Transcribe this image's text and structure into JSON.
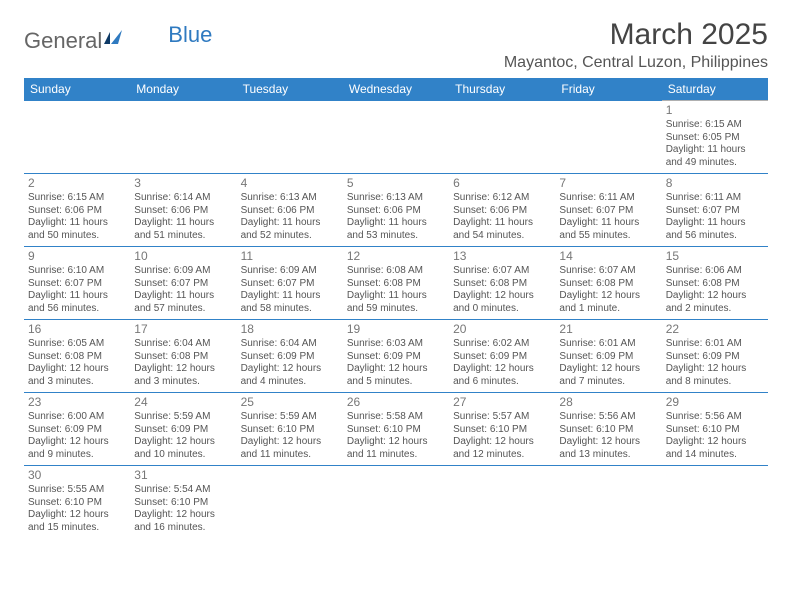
{
  "brand": {
    "part1": "General",
    "part2": "Blue"
  },
  "title": "March 2025",
  "location": "Mayantoc, Central Luzon, Philippines",
  "colors": {
    "header_bg": "#3182c8",
    "header_text": "#ffffff",
    "row_divider": "#3182c8",
    "day_border": "#b0b0b0",
    "text": "#555555",
    "brand_accent": "#2f7ac0"
  },
  "daynames": [
    "Sunday",
    "Monday",
    "Tuesday",
    "Wednesday",
    "Thursday",
    "Friday",
    "Saturday"
  ],
  "weeks": [
    [
      null,
      null,
      null,
      null,
      null,
      null,
      {
        "n": "1",
        "sr": "6:15 AM",
        "ss": "6:05 PM",
        "dl": "11 hours and 49 minutes."
      }
    ],
    [
      {
        "n": "2",
        "sr": "6:15 AM",
        "ss": "6:06 PM",
        "dl": "11 hours and 50 minutes."
      },
      {
        "n": "3",
        "sr": "6:14 AM",
        "ss": "6:06 PM",
        "dl": "11 hours and 51 minutes."
      },
      {
        "n": "4",
        "sr": "6:13 AM",
        "ss": "6:06 PM",
        "dl": "11 hours and 52 minutes."
      },
      {
        "n": "5",
        "sr": "6:13 AM",
        "ss": "6:06 PM",
        "dl": "11 hours and 53 minutes."
      },
      {
        "n": "6",
        "sr": "6:12 AM",
        "ss": "6:06 PM",
        "dl": "11 hours and 54 minutes."
      },
      {
        "n": "7",
        "sr": "6:11 AM",
        "ss": "6:07 PM",
        "dl": "11 hours and 55 minutes."
      },
      {
        "n": "8",
        "sr": "6:11 AM",
        "ss": "6:07 PM",
        "dl": "11 hours and 56 minutes."
      }
    ],
    [
      {
        "n": "9",
        "sr": "6:10 AM",
        "ss": "6:07 PM",
        "dl": "11 hours and 56 minutes."
      },
      {
        "n": "10",
        "sr": "6:09 AM",
        "ss": "6:07 PM",
        "dl": "11 hours and 57 minutes."
      },
      {
        "n": "11",
        "sr": "6:09 AM",
        "ss": "6:07 PM",
        "dl": "11 hours and 58 minutes."
      },
      {
        "n": "12",
        "sr": "6:08 AM",
        "ss": "6:08 PM",
        "dl": "11 hours and 59 minutes."
      },
      {
        "n": "13",
        "sr": "6:07 AM",
        "ss": "6:08 PM",
        "dl": "12 hours and 0 minutes."
      },
      {
        "n": "14",
        "sr": "6:07 AM",
        "ss": "6:08 PM",
        "dl": "12 hours and 1 minute."
      },
      {
        "n": "15",
        "sr": "6:06 AM",
        "ss": "6:08 PM",
        "dl": "12 hours and 2 minutes."
      }
    ],
    [
      {
        "n": "16",
        "sr": "6:05 AM",
        "ss": "6:08 PM",
        "dl": "12 hours and 3 minutes."
      },
      {
        "n": "17",
        "sr": "6:04 AM",
        "ss": "6:08 PM",
        "dl": "12 hours and 3 minutes."
      },
      {
        "n": "18",
        "sr": "6:04 AM",
        "ss": "6:09 PM",
        "dl": "12 hours and 4 minutes."
      },
      {
        "n": "19",
        "sr": "6:03 AM",
        "ss": "6:09 PM",
        "dl": "12 hours and 5 minutes."
      },
      {
        "n": "20",
        "sr": "6:02 AM",
        "ss": "6:09 PM",
        "dl": "12 hours and 6 minutes."
      },
      {
        "n": "21",
        "sr": "6:01 AM",
        "ss": "6:09 PM",
        "dl": "12 hours and 7 minutes."
      },
      {
        "n": "22",
        "sr": "6:01 AM",
        "ss": "6:09 PM",
        "dl": "12 hours and 8 minutes."
      }
    ],
    [
      {
        "n": "23",
        "sr": "6:00 AM",
        "ss": "6:09 PM",
        "dl": "12 hours and 9 minutes."
      },
      {
        "n": "24",
        "sr": "5:59 AM",
        "ss": "6:09 PM",
        "dl": "12 hours and 10 minutes."
      },
      {
        "n": "25",
        "sr": "5:59 AM",
        "ss": "6:10 PM",
        "dl": "12 hours and 11 minutes."
      },
      {
        "n": "26",
        "sr": "5:58 AM",
        "ss": "6:10 PM",
        "dl": "12 hours and 11 minutes."
      },
      {
        "n": "27",
        "sr": "5:57 AM",
        "ss": "6:10 PM",
        "dl": "12 hours and 12 minutes."
      },
      {
        "n": "28",
        "sr": "5:56 AM",
        "ss": "6:10 PM",
        "dl": "12 hours and 13 minutes."
      },
      {
        "n": "29",
        "sr": "5:56 AM",
        "ss": "6:10 PM",
        "dl": "12 hours and 14 minutes."
      }
    ],
    [
      {
        "n": "30",
        "sr": "5:55 AM",
        "ss": "6:10 PM",
        "dl": "12 hours and 15 minutes."
      },
      {
        "n": "31",
        "sr": "5:54 AM",
        "ss": "6:10 PM",
        "dl": "12 hours and 16 minutes."
      },
      null,
      null,
      null,
      null,
      null
    ]
  ],
  "labels": {
    "sunrise": "Sunrise:",
    "sunset": "Sunset:",
    "daylight": "Daylight:"
  }
}
